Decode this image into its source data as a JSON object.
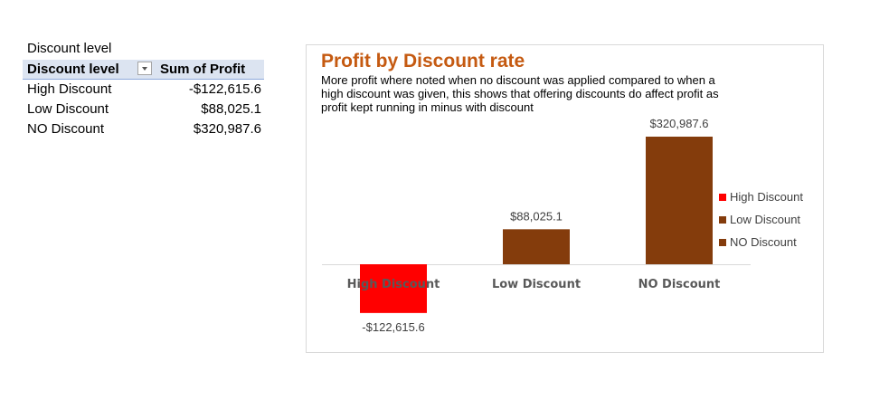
{
  "pivot": {
    "caption": "Discount level",
    "header": {
      "col1": "Discount level",
      "col2": "Sum of Profit"
    },
    "rows": [
      {
        "label": "High Discount",
        "value": "-$122,615.6"
      },
      {
        "label": "Low Discount",
        "value": "$88,025.1"
      },
      {
        "label": "NO Discount",
        "value": "$320,987.6"
      }
    ]
  },
  "chart_data": {
    "type": "bar",
    "title": "Profit by Discount rate",
    "subtitle": "More profit where noted when no discount was applied compared to when a high discount was given, this shows that offering discounts do affect profit as profit kept running in minus with discount",
    "categories": [
      "High Discount",
      "Low Discount",
      "NO Discount"
    ],
    "values": [
      -122615.6,
      88025.1,
      320987.6
    ],
    "data_labels": [
      "-$122,615.6",
      "$88,025.1",
      "$320,987.6"
    ],
    "colors": [
      "#ff0000",
      "#843c0c",
      "#843c0c"
    ],
    "legend": {
      "position": "right",
      "entries": [
        {
          "name": "High Discount",
          "color": "#ff0000"
        },
        {
          "name": "Low Discount",
          "color": "#843c0c"
        },
        {
          "name": "NO Discount",
          "color": "#843c0c"
        }
      ]
    },
    "xlabel": "",
    "ylabel": "",
    "grid": false,
    "title_color": "#c55a11"
  }
}
